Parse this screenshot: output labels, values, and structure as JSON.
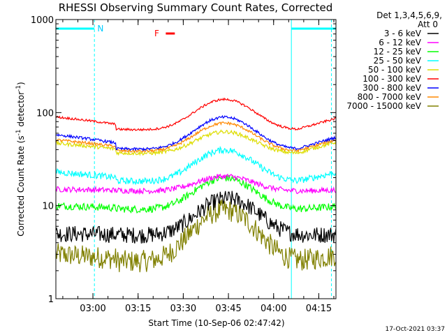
{
  "chart_data": {
    "type": "line",
    "title": "RHESSI Observing Summary Count Rates, Corrected",
    "xlabel": "Start Time (10-Sep-06 02:47:42)",
    "ylabel_prefix": "Corrected Count Rate (s",
    "ylabel_sup1": "-1",
    "ylabel_mid": " detector",
    "ylabel_sup2": "-1",
    "ylabel_suffix": ")",
    "y_scale": "log",
    "ylim": [
      1,
      1000
    ],
    "xlim_minutes": [
      0,
      93
    ],
    "x_ticks": [
      {
        "label": "03:00",
        "minute": 12.3
      },
      {
        "label": "03:15",
        "minute": 27.3
      },
      {
        "label": "03:30",
        "minute": 42.3
      },
      {
        "label": "03:45",
        "minute": 57.3
      },
      {
        "label": "04:00",
        "minute": 72.3
      },
      {
        "label": "04:15",
        "minute": 87.3
      }
    ],
    "y_ticks": [
      {
        "label": "1",
        "value": 1
      },
      {
        "label": "10",
        "value": 10
      },
      {
        "label": "100",
        "value": 100
      },
      {
        "label": "1000",
        "value": 1000
      }
    ],
    "legend_header": [
      "Det 1,3,4,5,6,9,",
      "Att 0"
    ],
    "legend_position": "right",
    "series": [
      {
        "name": "3 - 6 keV",
        "color": "#000000",
        "low": 5,
        "high": 12,
        "start": 5,
        "end": 5,
        "noise": 0.09,
        "peak_min": 57
      },
      {
        "name": "6 - 12 keV",
        "color": "#ff00ff",
        "low": 15,
        "high": 21,
        "start": 15,
        "end": 15,
        "noise": 0.03,
        "peak_min": 56
      },
      {
        "name": "12 - 25 keV",
        "color": "#00ff00",
        "low": 9.5,
        "high": 20,
        "start": 10,
        "end": 10,
        "noise": 0.04,
        "peak_min": 56
      },
      {
        "name": "25 - 50 keV",
        "color": "#00ffff",
        "low": 19,
        "high": 40,
        "start": 23,
        "end": 23,
        "noise": 0.035,
        "peak_min": 56
      },
      {
        "name": "50 - 100 keV",
        "color": "#dddd00",
        "low": 38,
        "high": 63,
        "start": 47,
        "end": 49,
        "noise": 0.02,
        "peak_min": 56
      },
      {
        "name": "100 - 300 keV",
        "color": "#ff0000",
        "low": 68,
        "high": 140,
        "start": 90,
        "end": 88,
        "noise": 0.012,
        "peak_min": 56
      },
      {
        "name": "300 - 800 keV",
        "color": "#0000ff",
        "low": 42,
        "high": 90,
        "start": 58,
        "end": 55,
        "noise": 0.015,
        "peak_min": 56
      },
      {
        "name": "800 - 7000 keV",
        "color": "#ff8800",
        "low": 40,
        "high": 78,
        "start": 51,
        "end": 52,
        "noise": 0.015,
        "peak_min": 56
      },
      {
        "name": "7000 - 15000 keV",
        "color": "#808000",
        "low": 2.6,
        "high": 9,
        "start": 3,
        "end": 3,
        "noise": 0.12,
        "peak_min": 56
      }
    ],
    "annotations": [
      {
        "text": "N",
        "color": "#00ccff",
        "minute": 14.8
      },
      {
        "text": "F",
        "color": "#ff0000",
        "minute": 33.5
      }
    ],
    "night_bars_minutes": [
      [
        0,
        12.8
      ],
      [
        78.2,
        93
      ]
    ],
    "flare_bar_minutes": [
      36.5,
      39.5
    ],
    "solid_vlines_minutes": [
      78.2
    ],
    "dashed_vlines_minutes": [
      12.8,
      91.5
    ],
    "timestamp": "17-Oct-2021 03:37"
  }
}
